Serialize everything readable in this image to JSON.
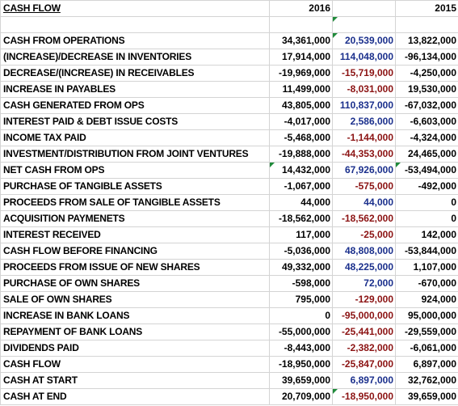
{
  "header": {
    "title": "CASH FLOW",
    "col_2016": "2016",
    "col_mid": "",
    "col_2015": "2015"
  },
  "colors": {
    "negative": "#8b1212",
    "positive": "#1a2f8c",
    "grid": "#d4d4d4",
    "note_marker": "#1f8a3a"
  },
  "rows": [
    {
      "label": "CASH FROM OPERATIONS",
      "v2016": "34,361,000",
      "vmid": "20,539,000",
      "vmid_tone": "pos",
      "v2015": "13,822,000",
      "tri_mid": true
    },
    {
      "label": "(INCREASE)/DECREASE IN INVENTORIES",
      "v2016": "17,914,000",
      "vmid": "114,048,000",
      "vmid_tone": "pos",
      "v2015": "-96,134,000"
    },
    {
      "label": "DECREASE/(INCREASE) IN RECEIVABLES",
      "v2016": "-19,969,000",
      "vmid": "-15,719,000",
      "vmid_tone": "neg",
      "v2015": "-4,250,000"
    },
    {
      "label": "INCREASE IN PAYABLES",
      "v2016": "11,499,000",
      "vmid": "-8,031,000",
      "vmid_tone": "neg",
      "v2015": "19,530,000"
    },
    {
      "label": "CASH GENERATED FROM OPS",
      "v2016": "43,805,000",
      "vmid": "110,837,000",
      "vmid_tone": "pos",
      "v2015": "-67,032,000"
    },
    {
      "label": "INTEREST PAID & DEBT ISSUE COSTS",
      "v2016": "-4,017,000",
      "vmid": "2,586,000",
      "vmid_tone": "pos",
      "v2015": "-6,603,000"
    },
    {
      "label": "INCOME TAX PAID",
      "v2016": "-5,468,000",
      "vmid": "-1,144,000",
      "vmid_tone": "neg",
      "v2015": "-4,324,000"
    },
    {
      "label": "INVESTMENT/DISTRIBUTION FROM JOINT VENTURES",
      "v2016": "-19,888,000",
      "vmid": "-44,353,000",
      "vmid_tone": "neg",
      "v2015": "24,465,000"
    },
    {
      "label": "NET CASH FROM OPS",
      "v2016": "14,432,000",
      "vmid": "67,926,000",
      "vmid_tone": "pos",
      "v2015": "-53,494,000",
      "tri_2016": true,
      "tri_2015": true
    },
    {
      "label": "PURCHASE OF TANGIBLE ASSETS",
      "v2016": "-1,067,000",
      "vmid": "-575,000",
      "vmid_tone": "neg",
      "v2015": "-492,000"
    },
    {
      "label": "PROCEEDS FROM SALE OF TANGIBLE ASSETS",
      "v2016": "44,000",
      "vmid": "44,000",
      "vmid_tone": "pos",
      "v2015": "0"
    },
    {
      "label": "ACQUISITION PAYMENETS",
      "v2016": "-18,562,000",
      "vmid": "-18,562,000",
      "vmid_tone": "neg",
      "v2015": "0"
    },
    {
      "label": "INTEREST RECEIVED",
      "v2016": "117,000",
      "vmid": "-25,000",
      "vmid_tone": "neg",
      "v2015": "142,000"
    },
    {
      "label": "CASH FLOW BEFORE FINANCING",
      "v2016": "-5,036,000",
      "vmid": "48,808,000",
      "vmid_tone": "pos",
      "v2015": "-53,844,000"
    },
    {
      "label": "PROCEEDS FROM ISSUE OF NEW SHARES",
      "v2016": "49,332,000",
      "vmid": "48,225,000",
      "vmid_tone": "pos",
      "v2015": "1,107,000"
    },
    {
      "label": "PURCHASE OF OWN SHARES",
      "v2016": "-598,000",
      "vmid": "72,000",
      "vmid_tone": "pos",
      "v2015": "-670,000"
    },
    {
      "label": "SALE OF OWN SHARES",
      "v2016": "795,000",
      "vmid": "-129,000",
      "vmid_tone": "neg",
      "v2015": "924,000"
    },
    {
      "label": "INCREASE IN BANK LOANS",
      "v2016": "0",
      "vmid": "-95,000,000",
      "vmid_tone": "neg",
      "v2015": "95,000,000"
    },
    {
      "label": "REPAYMENT OF BANK LOANS",
      "v2016": "-55,000,000",
      "vmid": "-25,441,000",
      "vmid_tone": "neg",
      "v2015": "-29,559,000"
    },
    {
      "label": "DIVIDENDS PAID",
      "v2016": "-8,443,000",
      "vmid": "-2,382,000",
      "vmid_tone": "neg",
      "v2015": "-6,061,000"
    },
    {
      "label": "CASH FLOW",
      "v2016": "-18,950,000",
      "vmid": "-25,847,000",
      "vmid_tone": "neg",
      "v2015": "6,897,000"
    },
    {
      "label": "CASH AT START",
      "v2016": "39,659,000",
      "vmid": "6,897,000",
      "vmid_tone": "pos",
      "v2015": "32,762,000"
    },
    {
      "label": "CASH AT END",
      "v2016": "20,709,000",
      "vmid": "-18,950,000",
      "vmid_tone": "neg",
      "v2015": "39,659,000",
      "tri_mid": true
    }
  ]
}
